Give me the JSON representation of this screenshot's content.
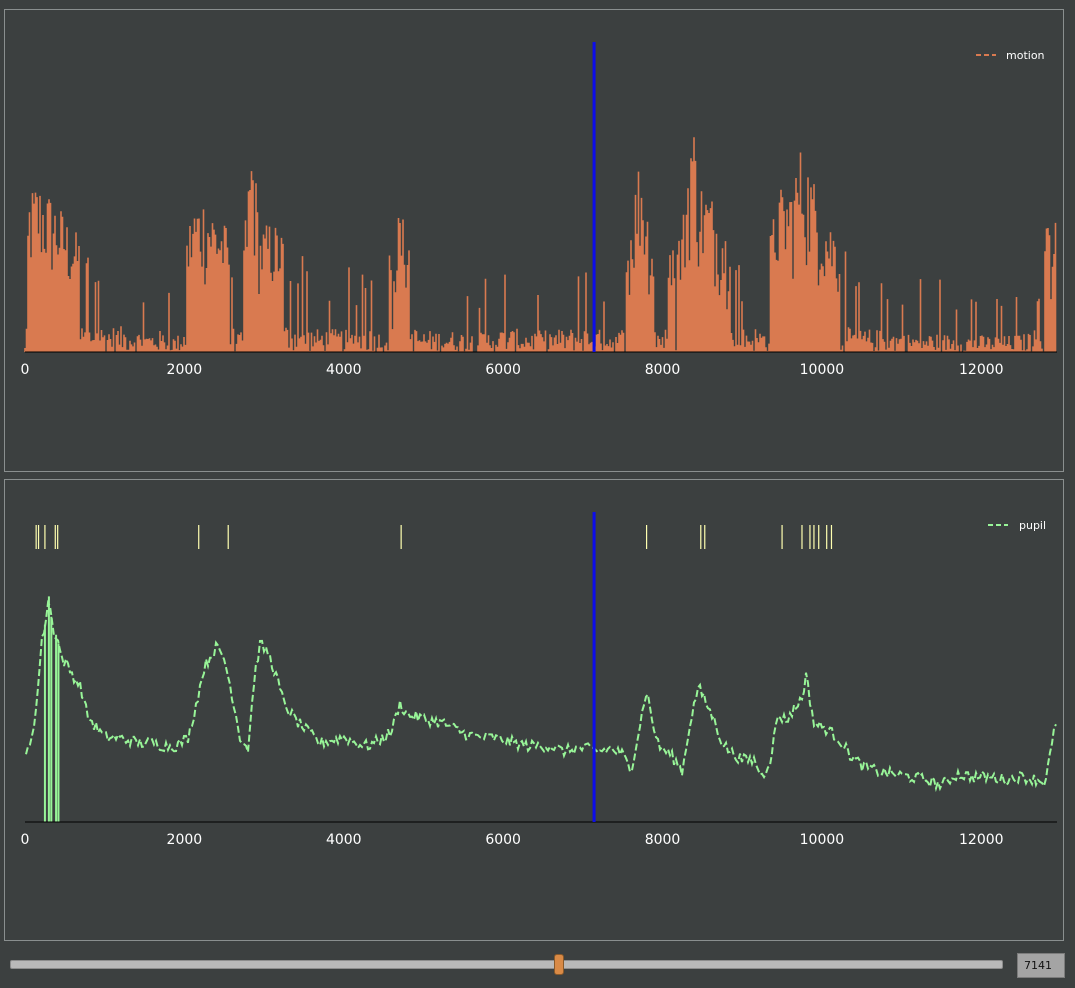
{
  "colors": {
    "background": "#3c4040",
    "panel_border": "#8a8f8f",
    "motion": "#d97a50",
    "pupil": "#98f598",
    "event_tick": "#ffffb0",
    "cursor": "#0d0dea",
    "slider_handle": "#d98a46"
  },
  "slider": {
    "frame_value": "7141",
    "fraction": 0.5525
  },
  "chart_data": [
    {
      "type": "line",
      "series": [
        {
          "name": "motion",
          "line_style": "dashed",
          "color": "#d97a50"
        }
      ],
      "x_ticks": [
        "0",
        "2000",
        "4000",
        "6000",
        "8000",
        "10000",
        "12000"
      ],
      "xlim": [
        0,
        12950
      ],
      "ylim": [
        0,
        1
      ],
      "legend_position": "top-right",
      "cursor_x": 7141,
      "envelope": [
        [
          0,
          0.17
        ],
        [
          50,
          0.52
        ],
        [
          150,
          0.56
        ],
        [
          300,
          0.52
        ],
        [
          450,
          0.47
        ],
        [
          600,
          0.4
        ],
        [
          760,
          0.36
        ],
        [
          900,
          0.36
        ],
        [
          1100,
          0.34
        ],
        [
          1300,
          0.33
        ],
        [
          1500,
          0.25
        ],
        [
          1700,
          0.28
        ],
        [
          1900,
          0.2
        ],
        [
          2100,
          0.48
        ],
        [
          2250,
          0.51
        ],
        [
          2400,
          0.46
        ],
        [
          2550,
          0.4
        ],
        [
          2700,
          0.22
        ],
        [
          2850,
          0.72
        ],
        [
          2950,
          0.4
        ],
        [
          3100,
          0.43
        ],
        [
          3250,
          0.38
        ],
        [
          3450,
          0.35
        ],
        [
          3650,
          0.3
        ],
        [
          3900,
          0.3
        ],
        [
          4100,
          0.28
        ],
        [
          4300,
          0.33
        ],
        [
          4500,
          0.25
        ],
        [
          4700,
          0.46
        ],
        [
          4800,
          0.4
        ],
        [
          4950,
          0.28
        ],
        [
          5200,
          0.28
        ],
        [
          5450,
          0.27
        ],
        [
          5700,
          0.25
        ],
        [
          5950,
          0.3
        ],
        [
          6200,
          0.3
        ],
        [
          6450,
          0.28
        ],
        [
          6700,
          0.3
        ],
        [
          6950,
          0.32
        ],
        [
          7200,
          0.3
        ],
        [
          7400,
          0.26
        ],
        [
          7550,
          0.35
        ],
        [
          7720,
          0.66
        ],
        [
          7850,
          0.4
        ],
        [
          8050,
          0.3
        ],
        [
          8250,
          0.42
        ],
        [
          8370,
          0.8
        ],
        [
          8470,
          0.56
        ],
        [
          8600,
          0.52
        ],
        [
          8750,
          0.44
        ],
        [
          8900,
          0.3
        ],
        [
          9100,
          0.34
        ],
        [
          9300,
          0.3
        ],
        [
          9450,
          0.53
        ],
        [
          9600,
          0.54
        ],
        [
          9750,
          0.68
        ],
        [
          9900,
          0.56
        ],
        [
          10050,
          0.45
        ],
        [
          10200,
          0.4
        ],
        [
          10400,
          0.28
        ],
        [
          10600,
          0.3
        ],
        [
          10850,
          0.28
        ],
        [
          11100,
          0.24
        ],
        [
          11400,
          0.25
        ],
        [
          11700,
          0.22
        ],
        [
          12000,
          0.22
        ],
        [
          12300,
          0.21
        ],
        [
          12550,
          0.24
        ],
        [
          12750,
          0.33
        ],
        [
          12850,
          0.45
        ],
        [
          12950,
          0.42
        ]
      ]
    },
    {
      "type": "line",
      "series": [
        {
          "name": "pupil",
          "line_style": "dashed",
          "color": "#98f598"
        }
      ],
      "x_ticks": [
        "0",
        "2000",
        "4000",
        "6000",
        "8000",
        "10000",
        "12000"
      ],
      "xlim": [
        0,
        12950
      ],
      "ylim": [
        0,
        1
      ],
      "legend_position": "top-right",
      "cursor_x": 7141,
      "events": [
        140,
        170,
        250,
        380,
        410,
        2180,
        2550,
        4720,
        7800,
        8480,
        8530,
        9500,
        9750,
        9850,
        9900,
        9960,
        10060,
        10120
      ],
      "dropouts": [
        250,
        300,
        330,
        390,
        420
      ],
      "trace": [
        [
          0,
          0.22
        ],
        [
          80,
          0.3
        ],
        [
          150,
          0.42
        ],
        [
          200,
          0.62
        ],
        [
          250,
          0.7
        ],
        [
          300,
          0.8
        ],
        [
          350,
          0.68
        ],
        [
          400,
          0.66
        ],
        [
          460,
          0.58
        ],
        [
          520,
          0.56
        ],
        [
          600,
          0.52
        ],
        [
          700,
          0.48
        ],
        [
          780,
          0.38
        ],
        [
          850,
          0.35
        ],
        [
          1000,
          0.3
        ],
        [
          1150,
          0.3
        ],
        [
          1300,
          0.29
        ],
        [
          1450,
          0.28
        ],
        [
          1600,
          0.28
        ],
        [
          1750,
          0.27
        ],
        [
          1900,
          0.27
        ],
        [
          2050,
          0.3
        ],
        [
          2150,
          0.42
        ],
        [
          2250,
          0.55
        ],
        [
          2400,
          0.62
        ],
        [
          2500,
          0.58
        ],
        [
          2600,
          0.45
        ],
        [
          2700,
          0.3
        ],
        [
          2800,
          0.26
        ],
        [
          2880,
          0.52
        ],
        [
          2950,
          0.63
        ],
        [
          3050,
          0.6
        ],
        [
          3150,
          0.52
        ],
        [
          3250,
          0.42
        ],
        [
          3400,
          0.36
        ],
        [
          3550,
          0.32
        ],
        [
          3700,
          0.28
        ],
        [
          3850,
          0.29
        ],
        [
          4000,
          0.3
        ],
        [
          4150,
          0.28
        ],
        [
          4300,
          0.27
        ],
        [
          4450,
          0.29
        ],
        [
          4600,
          0.32
        ],
        [
          4700,
          0.42
        ],
        [
          4800,
          0.38
        ],
        [
          4950,
          0.37
        ],
        [
          5100,
          0.36
        ],
        [
          5250,
          0.35
        ],
        [
          5400,
          0.33
        ],
        [
          5550,
          0.31
        ],
        [
          5700,
          0.3
        ],
        [
          5850,
          0.3
        ],
        [
          6000,
          0.29
        ],
        [
          6150,
          0.28
        ],
        [
          6300,
          0.27
        ],
        [
          6450,
          0.27
        ],
        [
          6600,
          0.27
        ],
        [
          6750,
          0.25
        ],
        [
          6900,
          0.26
        ],
        [
          7050,
          0.26
        ],
        [
          7200,
          0.25
        ],
        [
          7350,
          0.26
        ],
        [
          7500,
          0.24
        ],
        [
          7600,
          0.18
        ],
        [
          7700,
          0.32
        ],
        [
          7800,
          0.47
        ],
        [
          7870,
          0.36
        ],
        [
          7950,
          0.27
        ],
        [
          8100,
          0.24
        ],
        [
          8250,
          0.18
        ],
        [
          8350,
          0.36
        ],
        [
          8450,
          0.48
        ],
        [
          8550,
          0.42
        ],
        [
          8650,
          0.36
        ],
        [
          8750,
          0.28
        ],
        [
          8850,
          0.25
        ],
        [
          9000,
          0.22
        ],
        [
          9150,
          0.22
        ],
        [
          9250,
          0.16
        ],
        [
          9350,
          0.22
        ],
        [
          9450,
          0.38
        ],
        [
          9550,
          0.36
        ],
        [
          9650,
          0.4
        ],
        [
          9750,
          0.44
        ],
        [
          9800,
          0.52
        ],
        [
          9900,
          0.35
        ],
        [
          10050,
          0.33
        ],
        [
          10200,
          0.3
        ],
        [
          10350,
          0.24
        ],
        [
          10500,
          0.2
        ],
        [
          10700,
          0.18
        ],
        [
          10900,
          0.17
        ],
        [
          11100,
          0.16
        ],
        [
          11300,
          0.15
        ],
        [
          11500,
          0.13
        ],
        [
          11700,
          0.17
        ],
        [
          11900,
          0.16
        ],
        [
          12100,
          0.16
        ],
        [
          12300,
          0.15
        ],
        [
          12500,
          0.16
        ],
        [
          12700,
          0.15
        ],
        [
          12800,
          0.14
        ],
        [
          12880,
          0.26
        ],
        [
          12950,
          0.38
        ]
      ]
    }
  ]
}
